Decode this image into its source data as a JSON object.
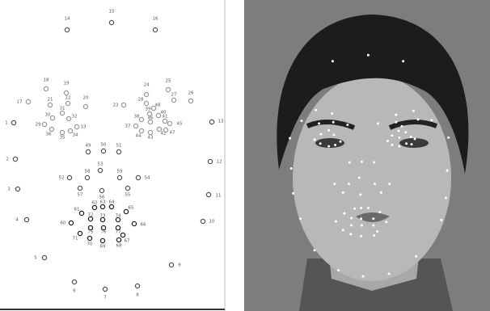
{
  "landmarks": {
    "labels": [
      "1",
      "2",
      "3",
      "4",
      "5",
      "6",
      "7",
      "8",
      "9",
      "10",
      "11",
      "12",
      "13",
      "14",
      "15",
      "16",
      "17",
      "18",
      "19",
      "20",
      "21",
      "22",
      "23",
      "24",
      "25",
      "26",
      "27",
      "28",
      "29",
      "30",
      "31",
      "32",
      "33",
      "34",
      "35",
      "36",
      "37",
      "38",
      "39",
      "40",
      "41",
      "42",
      "43",
      "44",
      "45",
      "46",
      "47",
      "48",
      "49",
      "50",
      "51",
      "52",
      "53",
      "54",
      "55",
      "56",
      "57",
      "58",
      "59",
      "60",
      "61",
      "62",
      "63",
      "64",
      "65",
      "66",
      "67",
      "68",
      "69",
      "70",
      "71",
      "72",
      "73",
      "74",
      "75",
      "76",
      "77"
    ]
  }
}
